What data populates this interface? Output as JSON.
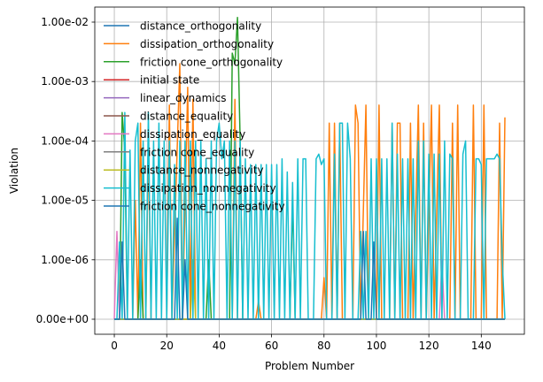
{
  "chart_data": {
    "type": "line",
    "xlabel": "Problem Number",
    "ylabel": "Violation",
    "xlim": [
      -7.45,
      156.45
    ],
    "xticks": [
      0,
      20,
      40,
      60,
      80,
      100,
      120,
      140
    ],
    "y_scale": "symlog",
    "yticks": [
      "0.00e+00",
      "1.00e-06",
      "1.00e-05",
      "1.00e-04",
      "1.00e-03",
      "1.00e-02"
    ],
    "grid": true,
    "legend_position": "top-left",
    "series": [
      {
        "name": "distance_orthogonality",
        "color": "#1f77b4",
        "points": [
          [
            0,
            0
          ],
          [
            149,
            0
          ]
        ]
      },
      {
        "name": "dissipation_orthogonality",
        "color": "#ff7f0e",
        "points": [
          [
            0,
            0
          ],
          [
            7,
            0
          ],
          [
            8,
            1e-05
          ],
          [
            9,
            0
          ],
          [
            10,
            0.0002
          ],
          [
            11,
            0
          ],
          [
            12,
            0
          ],
          [
            13,
            0.0001
          ],
          [
            14,
            0
          ],
          [
            20,
            0
          ],
          [
            21,
            0.0004
          ],
          [
            22,
            0
          ],
          [
            25,
            0.002
          ],
          [
            26,
            0
          ],
          [
            28,
            0.0008
          ],
          [
            29,
            0
          ],
          [
            30,
            0.0005
          ],
          [
            31,
            0
          ],
          [
            45,
            0
          ],
          [
            46,
            0.0005
          ],
          [
            47,
            0
          ],
          [
            54,
            0
          ],
          [
            55,
            2e-07
          ],
          [
            56,
            0
          ],
          [
            58,
            0
          ],
          [
            59,
            1e-07
          ],
          [
            60,
            0
          ],
          [
            64,
            0
          ],
          [
            65,
            1e-07
          ],
          [
            66,
            0
          ],
          [
            79,
            0
          ],
          [
            80,
            5e-07
          ],
          [
            81,
            0
          ],
          [
            82,
            0.0002
          ],
          [
            83,
            0
          ],
          [
            84,
            0.0002
          ],
          [
            85,
            0
          ],
          [
            86,
            0.0002
          ],
          [
            87,
            0
          ],
          [
            91,
            0
          ],
          [
            92,
            0.0004
          ],
          [
            93,
            0.0002
          ],
          [
            94,
            0
          ],
          [
            96,
            0.0004
          ],
          [
            97,
            0
          ],
          [
            100,
            0
          ],
          [
            101,
            0.0004
          ],
          [
            102,
            0
          ],
          [
            105,
            0
          ],
          [
            106,
            0.0002
          ],
          [
            107,
            0
          ],
          [
            108,
            0.0002
          ],
          [
            109,
            0.0002
          ],
          [
            110,
            0
          ],
          [
            112,
            0
          ],
          [
            113,
            0.0002
          ],
          [
            114,
            0
          ],
          [
            116,
            0.0004
          ],
          [
            117,
            0
          ],
          [
            118,
            0.0002
          ],
          [
            119,
            0
          ],
          [
            121,
            0.0004
          ],
          [
            122,
            0
          ],
          [
            124,
            0.0004
          ],
          [
            125,
            0
          ],
          [
            128,
            0
          ],
          [
            129,
            0.0002
          ],
          [
            130,
            0
          ],
          [
            131,
            0.0004
          ],
          [
            132,
            0
          ],
          [
            136,
            0
          ],
          [
            137,
            0.0004
          ],
          [
            138,
            0
          ],
          [
            140,
            0
          ],
          [
            141,
            0.0004
          ],
          [
            142,
            0
          ],
          [
            146,
            0
          ],
          [
            147,
            0.0002
          ],
          [
            148,
            0
          ],
          [
            149,
            0.00025
          ]
        ]
      },
      {
        "name": "friction cone_orthogonality",
        "color": "#2ca02c",
        "points": [
          [
            0,
            0
          ],
          [
            2,
            0
          ],
          [
            3,
            0.0003
          ],
          [
            4,
            7e-05
          ],
          [
            5,
            0
          ],
          [
            9,
            0
          ],
          [
            10,
            1e-06
          ],
          [
            11,
            0
          ],
          [
            35,
            0
          ],
          [
            36,
            1e-06
          ],
          [
            37,
            0
          ],
          [
            44,
            0
          ],
          [
            45,
            0.003
          ],
          [
            46,
            0.002
          ],
          [
            47,
            0.012
          ],
          [
            48,
            0.0001
          ],
          [
            49,
            0
          ],
          [
            67,
            0
          ],
          [
            68,
            1e-05
          ],
          [
            69,
            0
          ],
          [
            120,
            0
          ],
          [
            121,
            1e-07
          ],
          [
            122,
            0
          ],
          [
            149,
            0
          ]
        ]
      },
      {
        "name": "initial state",
        "color": "#d62728",
        "points": [
          [
            0,
            0
          ],
          [
            149,
            0
          ]
        ]
      },
      {
        "name": "linear_dynamics",
        "color": "#9467bd",
        "points": [
          [
            0,
            0
          ],
          [
            149,
            0
          ]
        ]
      },
      {
        "name": "distance_equality",
        "color": "#8c564b",
        "points": [
          [
            0,
            0
          ],
          [
            149,
            0
          ]
        ]
      },
      {
        "name": "dissipation_equality",
        "color": "#e377c2",
        "points": [
          [
            0,
            0
          ],
          [
            1,
            3e-06
          ],
          [
            2,
            0
          ],
          [
            124,
            0
          ],
          [
            125,
            1e-06
          ],
          [
            126,
            0
          ],
          [
            149,
            0
          ]
        ]
      },
      {
        "name": "friction cone_equality",
        "color": "#7f7f7f",
        "points": [
          [
            0,
            0
          ],
          [
            149,
            0
          ]
        ]
      },
      {
        "name": "distance_nonnegativity",
        "color": "#bcbd22",
        "points": [
          [
            0,
            0
          ],
          [
            29,
            0
          ],
          [
            30,
            1e-06
          ],
          [
            31,
            0
          ],
          [
            149,
            0
          ]
        ]
      },
      {
        "name": "dissipation_nonnegativity",
        "color": "#17becf",
        "points": [
          [
            0,
            0
          ],
          [
            1,
            0
          ],
          [
            2,
            2e-06
          ],
          [
            3,
            0
          ],
          [
            4,
            0.0003
          ],
          [
            5,
            0
          ],
          [
            6,
            7e-05
          ],
          [
            7,
            0
          ],
          [
            8,
            0.0001
          ],
          [
            9,
            0.0002
          ],
          [
            10,
            0
          ],
          [
            11,
            0.0001
          ],
          [
            12,
            0
          ],
          [
            13,
            0.0003
          ],
          [
            14,
            0
          ],
          [
            15,
            0.0001
          ],
          [
            16,
            0
          ],
          [
            17,
            0.0002
          ],
          [
            18,
            0
          ],
          [
            19,
            0.0001
          ],
          [
            20,
            0
          ],
          [
            21,
            0.0001
          ],
          [
            22,
            0
          ],
          [
            23,
            4e-05
          ],
          [
            24,
            0
          ],
          [
            25,
            0.0001
          ],
          [
            26,
            0
          ],
          [
            27,
            0.0001
          ],
          [
            28,
            0
          ],
          [
            29,
            0.0001
          ],
          [
            30,
            0
          ],
          [
            31,
            0.0001
          ],
          [
            32,
            0
          ],
          [
            33,
            0.0001
          ],
          [
            34,
            0
          ],
          [
            35,
            5e-05
          ],
          [
            36,
            0
          ],
          [
            37,
            0.0001
          ],
          [
            38,
            0
          ],
          [
            39,
            0.0001
          ],
          [
            40,
            0.0002
          ],
          [
            41,
            5e-05
          ],
          [
            42,
            0.0001
          ],
          [
            43,
            0
          ],
          [
            44,
            0.0001
          ],
          [
            45,
            0
          ],
          [
            46,
            0.0001
          ],
          [
            47,
            0
          ],
          [
            48,
            0.0001
          ],
          [
            49,
            0
          ],
          [
            50,
            5e-05
          ],
          [
            51,
            0
          ],
          [
            52,
            4e-05
          ],
          [
            53,
            0
          ],
          [
            54,
            4e-05
          ],
          [
            55,
            0
          ],
          [
            56,
            4e-05
          ],
          [
            57,
            0
          ],
          [
            58,
            4e-05
          ],
          [
            59,
            0
          ],
          [
            60,
            4e-05
          ],
          [
            61,
            0
          ],
          [
            62,
            4e-05
          ],
          [
            63,
            0
          ],
          [
            64,
            5e-05
          ],
          [
            65,
            0
          ],
          [
            66,
            3e-05
          ],
          [
            67,
            0
          ],
          [
            68,
            2e-05
          ],
          [
            69,
            0
          ],
          [
            70,
            5e-05
          ],
          [
            71,
            0
          ],
          [
            72,
            5e-05
          ],
          [
            73,
            5e-05
          ],
          [
            74,
            0
          ],
          [
            76,
            0
          ],
          [
            77,
            5e-05
          ],
          [
            78,
            6e-05
          ],
          [
            79,
            4e-05
          ],
          [
            80,
            5e-05
          ],
          [
            81,
            0
          ],
          [
            83,
            0
          ],
          [
            84,
            6e-05
          ],
          [
            85,
            0
          ],
          [
            86,
            0.0002
          ],
          [
            87,
            0.0002
          ],
          [
            88,
            0
          ],
          [
            89,
            0.0002
          ],
          [
            90,
            5e-05
          ],
          [
            91,
            0
          ],
          [
            93,
            0
          ],
          [
            94,
            3e-06
          ],
          [
            95,
            0
          ],
          [
            96,
            3e-06
          ],
          [
            97,
            0
          ],
          [
            98,
            5e-05
          ],
          [
            99,
            0
          ],
          [
            100,
            5e-05
          ],
          [
            101,
            0
          ],
          [
            102,
            5e-05
          ],
          [
            103,
            0
          ],
          [
            104,
            5e-05
          ],
          [
            105,
            0
          ],
          [
            106,
            0.0002
          ],
          [
            107,
            0
          ],
          [
            108,
            6e-05
          ],
          [
            109,
            0
          ],
          [
            110,
            5e-05
          ],
          [
            111,
            0
          ],
          [
            112,
            5e-05
          ],
          [
            113,
            0
          ],
          [
            114,
            5e-05
          ],
          [
            115,
            0
          ],
          [
            116,
            0.0001
          ],
          [
            117,
            0
          ],
          [
            118,
            0.0001
          ],
          [
            119,
            0
          ],
          [
            120,
            6e-05
          ],
          [
            121,
            0
          ],
          [
            122,
            6e-05
          ],
          [
            123,
            0
          ],
          [
            124,
            6e-05
          ],
          [
            125,
            0
          ],
          [
            126,
            0.0001
          ],
          [
            127,
            0
          ],
          [
            128,
            6e-05
          ],
          [
            129,
            5e-05
          ],
          [
            130,
            0
          ],
          [
            132,
            0
          ],
          [
            133,
            6e-05
          ],
          [
            134,
            0.0001
          ],
          [
            135,
            0
          ],
          [
            137,
            0
          ],
          [
            138,
            5e-05
          ],
          [
            139,
            5e-05
          ],
          [
            140,
            4e-05
          ],
          [
            141,
            0
          ],
          [
            142,
            5e-05
          ],
          [
            143,
            5e-05
          ],
          [
            144,
            5e-05
          ],
          [
            145,
            5e-05
          ],
          [
            146,
            6e-05
          ],
          [
            147,
            5e-05
          ],
          [
            148,
            1e-06
          ],
          [
            149,
            0
          ]
        ]
      },
      {
        "name": "friction cone_nonnegativity",
        "color": "#1f77b4",
        "points": [
          [
            0,
            0
          ],
          [
            2,
            0
          ],
          [
            3,
            2e-06
          ],
          [
            4,
            0
          ],
          [
            23,
            0
          ],
          [
            24,
            5e-06
          ],
          [
            25,
            0
          ],
          [
            26,
            0
          ],
          [
            27,
            1e-06
          ],
          [
            28,
            0
          ],
          [
            94,
            0
          ],
          [
            95,
            3e-06
          ],
          [
            96,
            0
          ],
          [
            98,
            0
          ],
          [
            99,
            2e-06
          ],
          [
            100,
            0
          ],
          [
            149,
            0
          ]
        ]
      }
    ]
  }
}
